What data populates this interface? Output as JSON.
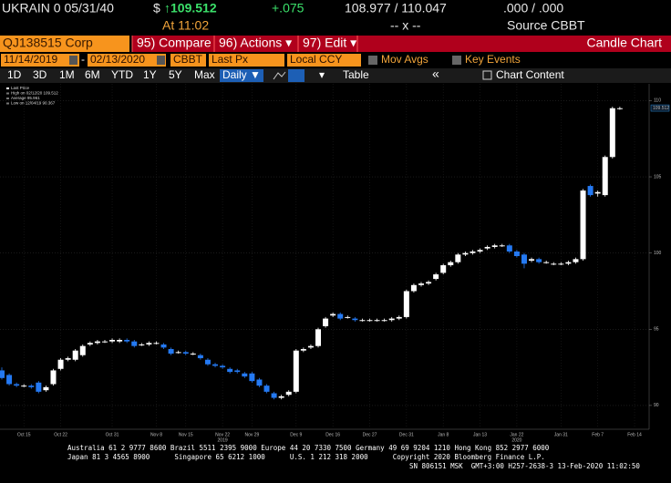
{
  "header": {
    "security": "UKRAIN 0 05/31/40",
    "currency": "$",
    "last": "↑109.512",
    "change": "+.075",
    "bid_ask": "108.977 / 110.047",
    "yield": ".000 / .000",
    "time": "At 11:02",
    "size": "-- x --",
    "source": "Source CBBT"
  },
  "menu": {
    "ticker": "QJ138515 Corp",
    "compare": "95) Compare",
    "actions": "96) Actions ▾",
    "edit": "97) Edit ▾",
    "title": "Candle Chart"
  },
  "toolbar": {
    "start": "11/14/2019",
    "dash": "-",
    "end": "02/13/2020",
    "pricing": "CBBT",
    "field": "Last Px",
    "ccy": "Local CCY",
    "mov_avgs": "Mov Avgs",
    "key_events": "Key Events"
  },
  "periods": {
    "buttons": [
      "1D",
      "3D",
      "1M",
      "6M",
      "YTD",
      "1Y",
      "5Y",
      "Max"
    ],
    "frequency": "Daily ▼",
    "table": "Table",
    "collapse": "«",
    "content": "Chart Content"
  },
  "chart_data": {
    "type": "candlestick",
    "up_color": "#ffffff",
    "down_color": "#2479f2",
    "grid": true,
    "legend": [
      "Last Price",
      "High on 02/12/20 109.512",
      "Average 95.961",
      "Low on 12/04/19 90.367"
    ],
    "last_price": 109.512,
    "categories": [
      null,
      null,
      null,
      "Oct 15",
      null,
      null,
      null,
      null,
      "Oct 22",
      null,
      null,
      null,
      null,
      null,
      null,
      "Oct 31",
      null,
      null,
      null,
      null,
      null,
      "Nov 8",
      null,
      null,
      null,
      "Nov 15",
      null,
      null,
      null,
      null,
      "Nov 22",
      null,
      null,
      null,
      "Nov 29",
      null,
      null,
      null,
      null,
      null,
      "Dec 9",
      null,
      null,
      null,
      null,
      "Dec 16",
      null,
      null,
      null,
      null,
      "Dec 27",
      null,
      null,
      null,
      null,
      "Dec 31",
      null,
      null,
      null,
      null,
      "Jan 8",
      null,
      null,
      null,
      null,
      "Jan 13",
      null,
      null,
      null,
      null,
      "Jan 22",
      null,
      null,
      null,
      null,
      null,
      "Jan 31",
      null,
      null,
      null,
      null,
      "Feb 7",
      null,
      null,
      null,
      null,
      "Feb 14"
    ],
    "years": [
      null,
      null,
      null,
      null,
      null,
      null,
      null,
      null,
      null,
      null,
      null,
      null,
      null,
      null,
      null,
      null,
      null,
      null,
      null,
      null,
      null,
      null,
      null,
      null,
      null,
      null,
      null,
      null,
      null,
      null,
      "2019",
      null,
      null,
      null,
      null,
      null,
      null,
      null,
      null,
      null,
      null,
      null,
      null,
      null,
      null,
      null,
      null,
      null,
      null,
      null,
      null,
      null,
      null,
      null,
      null,
      null,
      null,
      null,
      null,
      null,
      null,
      null,
      null,
      null,
      null,
      null,
      null,
      null,
      null,
      null,
      "2020",
      null,
      null,
      null,
      null,
      null,
      null,
      null,
      null,
      null,
      null,
      null,
      null,
      null,
      null,
      null,
      null
    ],
    "open": [
      92.3,
      92.0,
      91.4,
      91.3,
      91.3,
      91.5,
      91.0,
      91.4,
      92.4,
      93.0,
      93.0,
      93.3,
      94.0,
      94.1,
      94.2,
      94.2,
      94.2,
      94.3,
      94.2,
      94.0,
      94.0,
      94.1,
      94.0,
      93.7,
      93.5,
      93.5,
      93.4,
      93.3,
      93.0,
      92.7,
      92.6,
      92.4,
      92.3,
      92.1,
      92.1,
      91.7,
      91.3,
      90.8,
      90.5,
      90.7,
      90.9,
      93.6,
      93.8,
      93.9,
      95.2,
      95.9,
      96.0,
      95.8,
      95.7,
      95.6,
      95.6,
      95.6,
      95.6,
      95.6,
      95.7,
      95.8,
      97.5,
      97.9,
      98.0,
      98.3,
      98.7,
      99.2,
      99.4,
      99.9,
      100.0,
      100.1,
      100.3,
      100.4,
      100.5,
      100.5,
      100.1,
      99.9,
      99.5,
      99.6,
      99.4,
      99.3,
      99.3,
      99.3,
      99.4,
      99.6,
      104.4,
      103.9,
      103.8,
      106.3,
      109.5,
      null,
      null
    ],
    "close": [
      91.8,
      91.4,
      91.3,
      91.3,
      91.2,
      90.9,
      91.2,
      92.3,
      93.0,
      93.1,
      93.6,
      93.9,
      94.1,
      94.2,
      94.2,
      94.3,
      94.3,
      94.2,
      93.9,
      94.0,
      94.1,
      94.1,
      93.8,
      93.4,
      93.5,
      93.4,
      93.4,
      93.1,
      92.7,
      92.6,
      92.5,
      92.2,
      92.2,
      91.9,
      91.6,
      91.3,
      90.9,
      90.5,
      90.6,
      90.9,
      93.6,
      93.7,
      93.9,
      95.0,
      95.7,
      96.0,
      95.7,
      95.8,
      95.6,
      95.6,
      95.6,
      95.6,
      95.6,
      95.7,
      95.8,
      97.5,
      97.9,
      98.0,
      98.1,
      98.6,
      99.2,
      99.4,
      99.9,
      100.0,
      100.1,
      100.2,
      100.4,
      100.5,
      100.5,
      100.1,
      99.8,
      99.3,
      99.6,
      99.4,
      99.4,
      99.3,
      99.3,
      99.4,
      99.6,
      104.1,
      103.8,
      104.0,
      106.3,
      109.5,
      109.5,
      null,
      null
    ],
    "high": [
      92.5,
      92.1,
      91.5,
      91.4,
      91.4,
      91.6,
      91.3,
      92.4,
      93.1,
      93.2,
      93.7,
      94.0,
      94.2,
      94.3,
      94.3,
      94.4,
      94.4,
      94.4,
      94.3,
      94.1,
      94.2,
      94.2,
      94.1,
      93.8,
      93.6,
      93.6,
      93.5,
      93.4,
      93.1,
      92.8,
      92.7,
      92.5,
      92.4,
      92.2,
      92.2,
      91.8,
      91.4,
      90.9,
      90.7,
      91.0,
      93.7,
      93.8,
      94.0,
      95.1,
      95.8,
      96.1,
      96.1,
      95.9,
      95.8,
      95.7,
      95.7,
      95.7,
      95.7,
      95.8,
      95.9,
      97.6,
      98.0,
      98.1,
      98.2,
      98.7,
      99.3,
      99.5,
      100.0,
      100.1,
      100.2,
      100.3,
      100.5,
      100.6,
      100.6,
      100.6,
      100.2,
      100.0,
      99.7,
      99.7,
      99.5,
      99.4,
      99.4,
      99.5,
      99.7,
      104.2,
      104.5,
      104.1,
      106.4,
      109.6,
      109.6,
      null,
      null
    ],
    "low": [
      91.7,
      91.3,
      91.2,
      91.2,
      91.1,
      90.8,
      90.9,
      91.3,
      92.3,
      92.9,
      92.9,
      93.2,
      93.9,
      94.0,
      94.1,
      94.1,
      94.1,
      94.1,
      93.8,
      93.9,
      93.9,
      94.0,
      93.7,
      93.3,
      93.4,
      93.3,
      93.3,
      93.0,
      92.6,
      92.5,
      92.4,
      92.1,
      92.1,
      91.8,
      91.5,
      91.2,
      90.8,
      90.4,
      90.4,
      90.6,
      90.8,
      93.5,
      93.7,
      93.8,
      95.1,
      95.8,
      95.6,
      95.7,
      95.5,
      95.5,
      95.5,
      95.5,
      95.5,
      95.5,
      95.6,
      95.7,
      97.4,
      97.8,
      97.9,
      98.2,
      98.6,
      99.1,
      99.3,
      99.8,
      99.9,
      100.0,
      100.2,
      100.3,
      100.4,
      100.0,
      99.7,
      99.0,
      99.4,
      99.3,
      99.3,
      99.2,
      99.2,
      99.2,
      99.3,
      99.5,
      103.7,
      103.7,
      103.7,
      106.2,
      109.4,
      null,
      null
    ],
    "ylim": [
      88.5,
      111.1
    ],
    "yticks": [
      90,
      95,
      100,
      105,
      110
    ]
  },
  "footer": {
    "line1": "Australia 61 2 9777 8600 Brazil 5511 2395 9000 Europe 44 20 7330 7500 Germany 49 69 9204 1210 Hong Kong 852 2977 6000",
    "line2": "Japan 81 3 4565 8900      Singapore 65 6212 1000      U.S. 1 212 318 2000      Copyright 2020 Bloomberg Finance L.P.",
    "line3": "SN 806151 MSK  GMT+3:00 H257-2638-3 13-Feb-2020 11:02:50"
  }
}
